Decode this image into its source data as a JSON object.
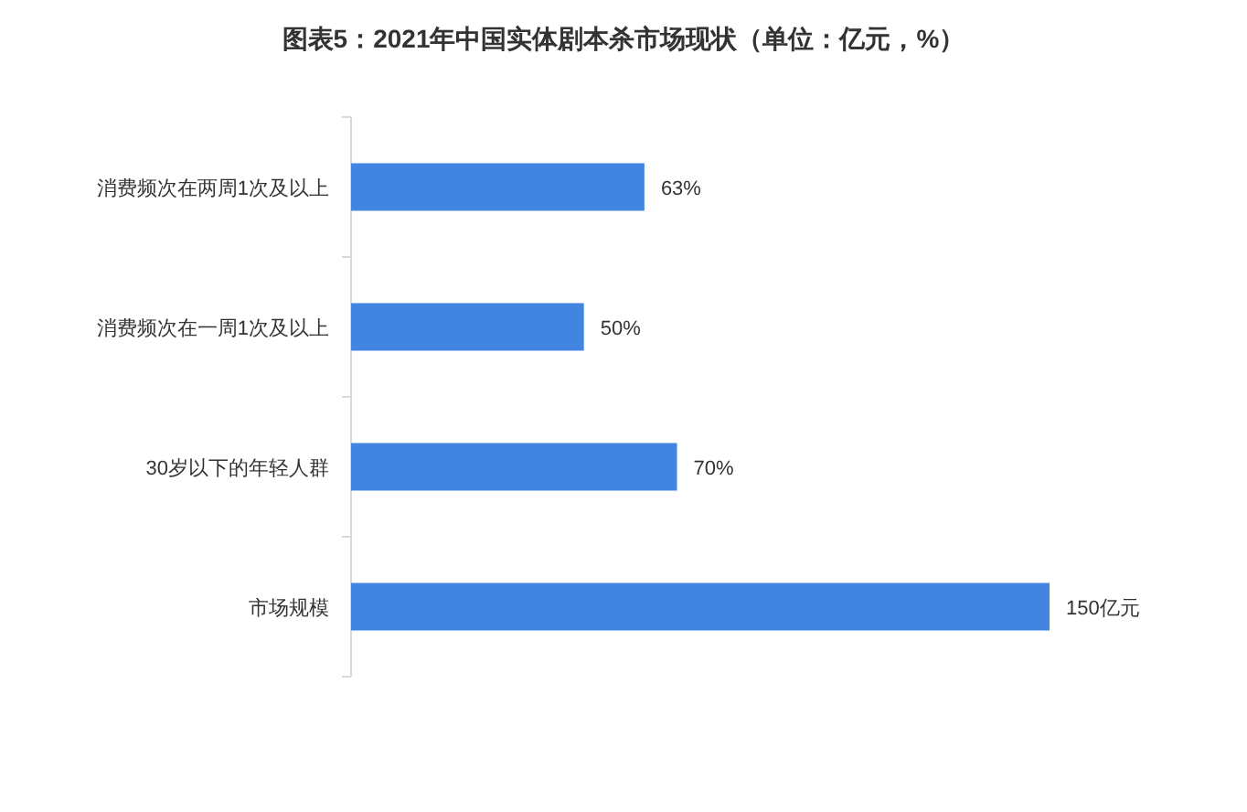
{
  "chart_data": {
    "type": "bar",
    "orientation": "horizontal",
    "title": "图表5：2021年中国实体剧本杀市场现状（单位：亿元，%）",
    "categories": [
      "消费频次在两周1次及以上",
      "消费频次在一周1次及以上",
      "30岁以下的年轻人群",
      "市场规模"
    ],
    "values": [
      63,
      50,
      70,
      150
    ],
    "value_labels": [
      "63%",
      "50%",
      "70%",
      "150亿元"
    ],
    "color": "#4285e0"
  }
}
